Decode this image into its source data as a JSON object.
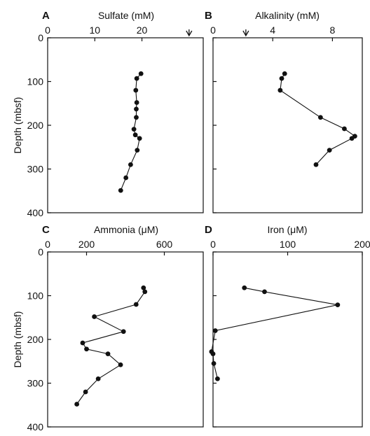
{
  "chart_data": [
    {
      "panel": "A",
      "type": "line",
      "title": "Sulfate (mM)",
      "ylabel": "Depth (mbsf)",
      "xlim": [
        0,
        33
      ],
      "ylim": [
        0,
        400
      ],
      "x_ticks": [
        0,
        10,
        20
      ],
      "y_ticks": [
        0,
        100,
        200,
        300,
        400
      ],
      "marker": 30,
      "points": [
        [
          19.8,
          82
        ],
        [
          18.9,
          93
        ],
        [
          18.7,
          120
        ],
        [
          18.9,
          148
        ],
        [
          18.8,
          163
        ],
        [
          18.8,
          182
        ],
        [
          18.3,
          209
        ],
        [
          18.6,
          222
        ],
        [
          19.5,
          230
        ],
        [
          19.0,
          257
        ],
        [
          17.6,
          290
        ],
        [
          16.6,
          320
        ],
        [
          15.5,
          349
        ]
      ]
    },
    {
      "panel": "B",
      "type": "line",
      "title": "Alkalinity (mM)",
      "ylabel": "",
      "xlim": [
        0,
        10
      ],
      "ylim": [
        0,
        400
      ],
      "x_ticks": [
        0,
        4,
        8
      ],
      "y_ticks": [
        0,
        100,
        200,
        300,
        400
      ],
      "marker": 2.2,
      "points": [
        [
          4.8,
          82
        ],
        [
          4.6,
          93
        ],
        [
          4.5,
          120
        ],
        [
          7.2,
          182
        ],
        [
          8.8,
          208
        ],
        [
          9.5,
          225
        ],
        [
          9.3,
          230
        ],
        [
          7.8,
          257
        ],
        [
          6.9,
          290
        ]
      ]
    },
    {
      "panel": "C",
      "type": "line",
      "title": "Ammonia (μM)",
      "ylabel": "Depth (mbsf)",
      "xlim": [
        0,
        800
      ],
      "ylim": [
        0,
        400
      ],
      "x_ticks": [
        0,
        200,
        600
      ],
      "y_ticks": [
        0,
        100,
        200,
        300,
        400
      ],
      "points": [
        [
          493,
          82
        ],
        [
          500,
          91
        ],
        [
          455,
          120
        ],
        [
          240,
          148
        ],
        [
          390,
          182
        ],
        [
          180,
          208
        ],
        [
          200,
          222
        ],
        [
          310,
          233
        ],
        [
          375,
          258
        ],
        [
          260,
          290
        ],
        [
          195,
          320
        ],
        [
          150,
          348
        ]
      ]
    },
    {
      "panel": "D",
      "type": "line",
      "title": "Iron (μM)",
      "ylabel": "",
      "xlim": [
        0,
        200
      ],
      "ylim": [
        0,
        400
      ],
      "x_ticks": [
        0,
        100,
        200
      ],
      "y_ticks": [
        0,
        100,
        200,
        300,
        400
      ],
      "points": [
        [
          42,
          82
        ],
        [
          69,
          91
        ],
        [
          167,
          121
        ],
        [
          3,
          180
        ],
        [
          -2,
          228
        ],
        [
          0,
          233
        ],
        [
          1,
          255
        ],
        [
          6,
          290
        ]
      ]
    }
  ]
}
